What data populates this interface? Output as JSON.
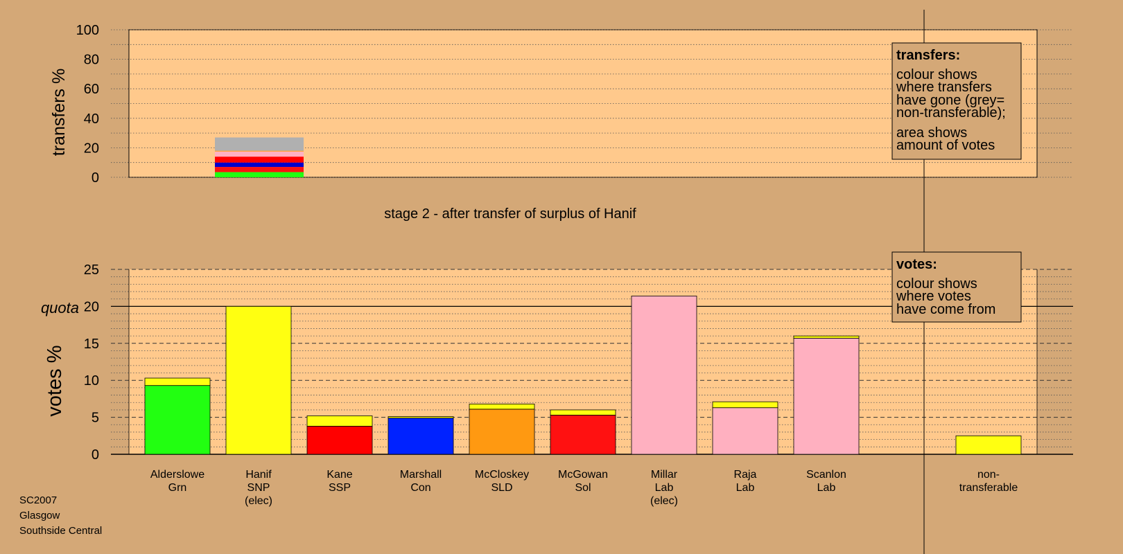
{
  "caption": "stage 2 - after transfer of surplus of Hanif",
  "footer": {
    "line1": "SC2007",
    "line2": "Glasgow",
    "line3": "Southside Central"
  },
  "colors": {
    "background": "#d4a877",
    "plot_area": "#ffc98c",
    "Grn": "#22ff11",
    "SNP": "#ffff11",
    "SSP": "#ff0000",
    "Con": "#0022ff",
    "SLD": "#ff9911",
    "Sol": "#ff1111",
    "Lab": "#ffb0c0",
    "non-transferable": "#b0b0b0",
    "transfer_blue": "#0000cc"
  },
  "legends": {
    "transfers": {
      "title": "transfers:",
      "lines": [
        "colour shows",
        "where transfers",
        "have gone (grey=",
        "non-transferable);",
        "area shows",
        "amount of votes"
      ]
    },
    "votes": {
      "title": "votes:",
      "lines": [
        "colour shows",
        "where votes",
        "have come from"
      ]
    }
  },
  "chart_data": [
    {
      "type": "bar",
      "name": "transfers",
      "ylabel": "transfers %",
      "ylim": [
        0,
        100
      ],
      "yticks": [
        0,
        20,
        40,
        60,
        80,
        100
      ],
      "grid": true,
      "legend_position": "top-right",
      "bars": [
        {
          "candidate": "Hanif",
          "segments": [
            {
              "party": "Grn",
              "value": 3.5
            },
            {
              "party": "Sol",
              "value": 3.5
            },
            {
              "party": "Con",
              "value": 3
            },
            {
              "party": "SSP",
              "value": 4
            },
            {
              "party": "Lab",
              "value": 3.5
            },
            {
              "party": "SLD",
              "value": 0.5
            },
            {
              "party": "non-transferable",
              "value": 9
            }
          ]
        }
      ]
    },
    {
      "type": "bar",
      "name": "votes",
      "ylabel": "votes %",
      "ylim": [
        0,
        25
      ],
      "yticks": [
        0,
        5,
        10,
        15,
        20,
        25
      ],
      "quota": 20,
      "quota_label": "quota",
      "grid": true,
      "legend_position": "top-right",
      "categories": [
        [
          "Alderslowe",
          "Grn"
        ],
        [
          "Hanif",
          "SNP",
          "(elec)"
        ],
        [
          "Kane",
          "SSP"
        ],
        [
          "Marshall",
          "Con"
        ],
        [
          "McCloskey",
          "SLD"
        ],
        [
          "McGowan",
          "Sol"
        ],
        [
          "Millar",
          "Lab",
          "(elec)"
        ],
        [
          "Raja",
          "Lab"
        ],
        [
          "Scanlon",
          "Lab"
        ],
        [
          "non-",
          "transferable"
        ]
      ],
      "bars": [
        {
          "segments": [
            {
              "party": "Grn",
              "value": 9.3
            },
            {
              "party": "SNP",
              "value": 1.0
            }
          ]
        },
        {
          "segments": [
            {
              "party": "SNP",
              "value": 20.0
            }
          ]
        },
        {
          "segments": [
            {
              "party": "SSP",
              "value": 3.8
            },
            {
              "party": "SNP",
              "value": 1.4
            }
          ]
        },
        {
          "segments": [
            {
              "party": "Con",
              "value": 4.9
            },
            {
              "party": "SNP",
              "value": 0.2
            }
          ]
        },
        {
          "segments": [
            {
              "party": "SLD",
              "value": 6.1
            },
            {
              "party": "SNP",
              "value": 0.7
            }
          ]
        },
        {
          "segments": [
            {
              "party": "Sol",
              "value": 5.3
            },
            {
              "party": "SNP",
              "value": 0.7
            }
          ]
        },
        {
          "segments": [
            {
              "party": "Lab",
              "value": 21.4
            }
          ]
        },
        {
          "segments": [
            {
              "party": "Lab",
              "value": 6.3
            },
            {
              "party": "SNP",
              "value": 0.8
            }
          ]
        },
        {
          "segments": [
            {
              "party": "Lab",
              "value": 15.7
            },
            {
              "party": "SNP",
              "value": 0.3
            }
          ]
        },
        {
          "segments": [
            {
              "party": "SNP",
              "value": 2.5
            }
          ]
        }
      ]
    }
  ]
}
